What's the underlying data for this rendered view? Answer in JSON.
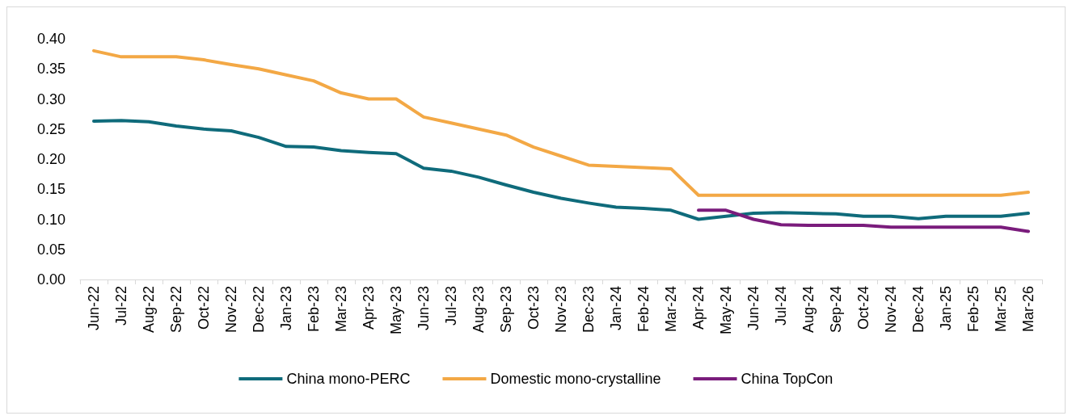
{
  "chart_data": {
    "type": "line",
    "categories": [
      "Jun-22",
      "Jul-22",
      "Aug-22",
      "Sep-22",
      "Oct-22",
      "Nov-22",
      "Dec-22",
      "Jan-23",
      "Feb-23",
      "Mar-23",
      "Apr-23",
      "May-23",
      "Jun-23",
      "Jul-23",
      "Aug-23",
      "Sep-23",
      "Oct-23",
      "Nov-23",
      "Dec-23",
      "Jan-24",
      "Feb-24",
      "Mar-24",
      "Apr-24",
      "May-24",
      "Jun-24",
      "Jul-24",
      "Aug-24",
      "Sep-24",
      "Oct-24",
      "Nov-24",
      "Dec-24",
      "Jan-25",
      "Feb-25",
      "Mar-25",
      "Mar-26"
    ],
    "series": [
      {
        "name": "China mono-PERC",
        "color": "#0f6b7b",
        "values": [
          0.263,
          0.264,
          0.262,
          0.255,
          0.25,
          0.247,
          0.236,
          0.221,
          0.22,
          0.214,
          0.211,
          0.209,
          0.185,
          0.18,
          0.17,
          0.157,
          0.145,
          0.135,
          0.127,
          0.12,
          0.118,
          0.115,
          0.1,
          0.105,
          0.11,
          0.111,
          0.11,
          0.109,
          0.105,
          0.105,
          0.101,
          0.105,
          0.105,
          0.105,
          0.11
        ]
      },
      {
        "name": "Domestic mono-crystalline",
        "color": "#f3a845",
        "values": [
          0.38,
          0.37,
          0.37,
          0.37,
          0.365,
          0.357,
          0.35,
          0.34,
          0.33,
          0.31,
          0.3,
          0.3,
          0.27,
          0.26,
          0.25,
          0.24,
          0.22,
          0.205,
          0.19,
          0.188,
          0.186,
          0.184,
          0.14,
          0.14,
          0.14,
          0.14,
          0.14,
          0.14,
          0.14,
          0.14,
          0.14,
          0.14,
          0.14,
          0.14,
          0.145
        ]
      },
      {
        "name": "China TopCon",
        "color": "#7a1c7c",
        "values": [
          null,
          null,
          null,
          null,
          null,
          null,
          null,
          null,
          null,
          null,
          null,
          null,
          null,
          null,
          null,
          null,
          null,
          null,
          null,
          null,
          null,
          null,
          0.115,
          0.115,
          0.1,
          0.091,
          0.09,
          0.09,
          0.09,
          0.087,
          0.087,
          0.087,
          0.087,
          0.087,
          0.08
        ]
      }
    ],
    "ylim": [
      0,
      0.4
    ],
    "yticks": [
      {
        "value": 0,
        "label": "0.00"
      },
      0.05,
      {
        "value": 0.1,
        "label": "0.10"
      },
      0.15,
      {
        "value": 0.2,
        "label": "0.20"
      },
      0.25,
      {
        "value": 0.3,
        "label": "0.30"
      },
      0.35,
      {
        "value": 0.4,
        "label": "0.40"
      }
    ],
    "grid": false,
    "legend": "bottom",
    "marker": "none",
    "line_style": "solid"
  }
}
